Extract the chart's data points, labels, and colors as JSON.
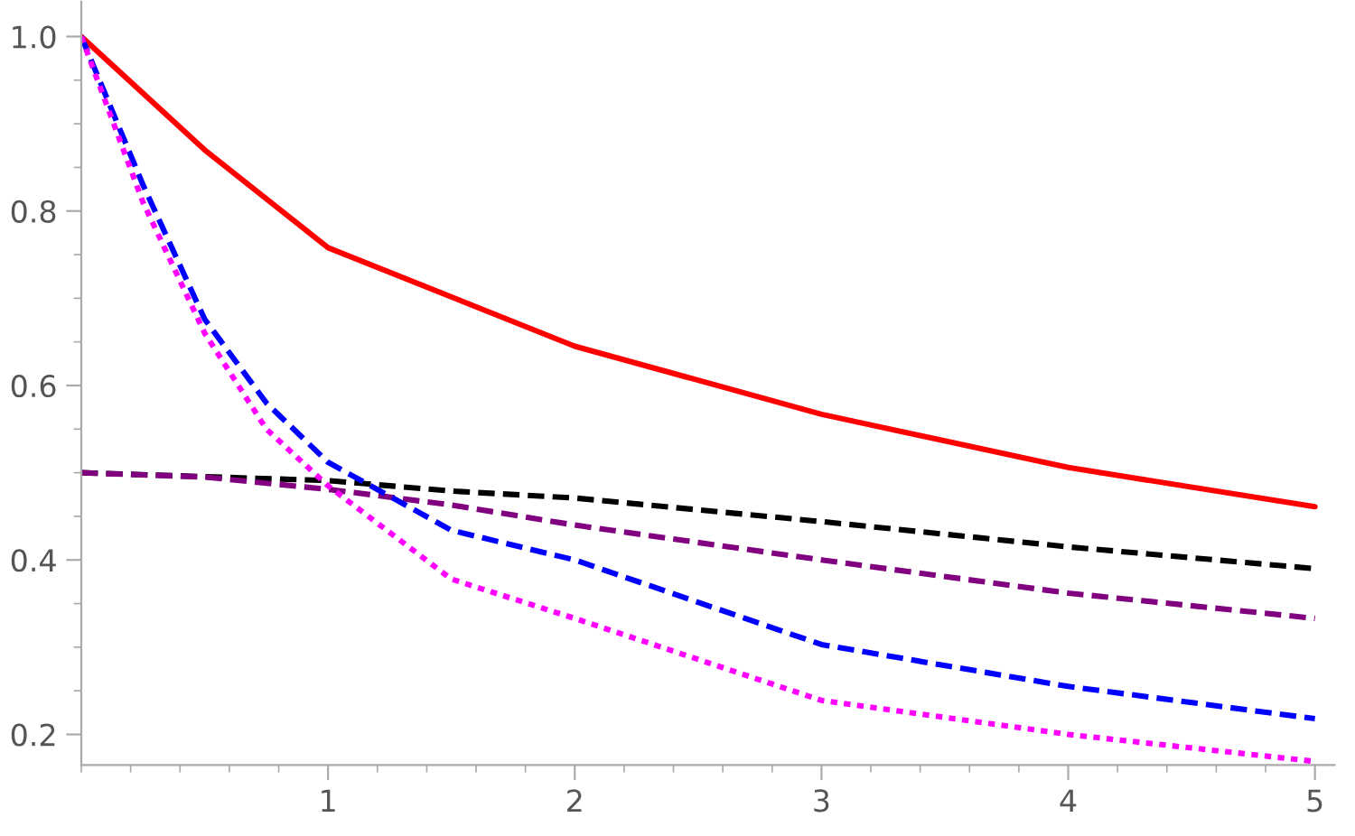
{
  "chart_data": {
    "type": "line",
    "xlim": [
      0,
      5.08
    ],
    "ylim": [
      0.165,
      1.04
    ],
    "xticks": [
      1,
      2,
      3,
      4,
      5
    ],
    "yticks": [
      0.2,
      0.4,
      0.6,
      0.8,
      {
        "value": 1,
        "label": "1.0"
      }
    ],
    "grid": false,
    "legend": false,
    "marker": "none",
    "series": [
      {
        "color": "#ff0000",
        "line_style": "solid",
        "x": [
          0,
          0.5,
          1,
          2,
          3,
          4,
          5
        ],
        "values": [
          1.0,
          0.87,
          0.758,
          0.645,
          0.567,
          0.506,
          0.461
        ]
      },
      {
        "color": "#000000",
        "line_style": "dashed",
        "x": [
          0,
          1,
          1.5,
          2,
          3,
          4,
          5
        ],
        "values": [
          0.5,
          0.491,
          0.479,
          0.471,
          0.444,
          0.415,
          0.39
        ]
      },
      {
        "color": "#800080",
        "line_style": "dashed",
        "x": [
          0,
          0.5,
          1,
          1.5,
          2,
          3,
          4,
          5
        ],
        "values": [
          0.5,
          0.495,
          0.481,
          0.463,
          0.44,
          0.4,
          0.362,
          0.333
        ]
      },
      {
        "color": "#0000ff",
        "line_style": "dashed",
        "x": [
          0,
          0.25,
          0.5,
          0.75,
          1,
          1.5,
          2,
          3,
          4,
          5
        ],
        "values": [
          1.0,
          0.83,
          0.676,
          0.58,
          0.512,
          0.434,
          0.4,
          0.303,
          0.255,
          0.218
        ]
      },
      {
        "color": "#ff00ff",
        "line_style": "dotted",
        "x": [
          0,
          0.25,
          0.5,
          0.75,
          1,
          1.5,
          2,
          3,
          4,
          5
        ],
        "values": [
          1.0,
          0.81,
          0.66,
          0.55,
          0.485,
          0.378,
          0.333,
          0.239,
          0.2,
          0.169
        ]
      }
    ]
  }
}
